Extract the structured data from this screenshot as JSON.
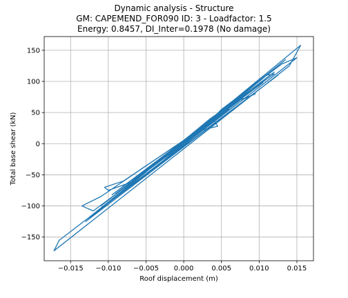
{
  "chart_data": {
    "type": "line",
    "title": [
      "Dynamic analysis - Structure",
      "GM: CAPEMEND_FOR090 ID: 3 -  Loadfactor: 1.5",
      "Energy: 0.8457, DI_Inter=0.1978 (No damage)"
    ],
    "xlabel": "Roof displacement (m)",
    "ylabel": "Total base shear (kN)",
    "xlim": [
      -0.0185,
      0.0172
    ],
    "ylim": [
      -188,
      172
    ],
    "xticks": [
      -0.015,
      -0.01,
      -0.005,
      0.0,
      0.005,
      0.01,
      0.015
    ],
    "xtick_labels": [
      "−0.015",
      "−0.010",
      "−0.005",
      "0.000",
      "0.005",
      "0.010",
      "0.015"
    ],
    "yticks": [
      -150,
      -100,
      -50,
      0,
      50,
      100,
      150
    ],
    "ytick_labels": [
      "−150",
      "−100",
      "−50",
      "0",
      "50",
      "100",
      "150"
    ],
    "grid": true,
    "line_color": "#1f77b4",
    "series": [
      {
        "values": [
          [
            0.0,
            0.0
          ],
          [
            0.002,
            20.0
          ],
          [
            -0.0015,
            -12.0
          ],
          [
            0.003,
            28.0
          ],
          [
            -0.0025,
            -20.0
          ],
          [
            0.0045,
            42.0
          ],
          [
            -0.004,
            -32.0
          ],
          [
            0.006,
            55.0
          ],
          [
            -0.005,
            -42.0
          ],
          [
            0.0075,
            70.0
          ],
          [
            -0.0065,
            -55.0
          ],
          [
            0.009,
            85.0
          ],
          [
            -0.008,
            -68.0
          ],
          [
            0.0105,
            98.0
          ],
          [
            -0.0095,
            -82.0
          ],
          [
            0.012,
            115.0
          ],
          [
            -0.011,
            -100.0
          ],
          [
            0.0135,
            135.0
          ],
          [
            -0.0125,
            -118.0
          ],
          [
            0.0125,
            110.0
          ],
          [
            -0.013,
            -125.0
          ],
          [
            0.0155,
            158.0
          ],
          [
            0.014,
            125.0
          ],
          [
            -0.0172,
            -172.0
          ],
          [
            -0.0165,
            -155.0
          ],
          [
            0.011,
            100.0
          ],
          [
            0.015,
            138.0
          ],
          [
            0.013,
            128.0
          ],
          [
            0.005,
            55.0
          ],
          [
            0.003,
            30.0
          ],
          [
            -0.011,
            -85.0
          ],
          [
            -0.0135,
            -100.0
          ],
          [
            -0.012,
            -108.0
          ],
          [
            0.008,
            72.0
          ],
          [
            0.0095,
            80.0
          ],
          [
            0.007,
            68.0
          ],
          [
            -0.007,
            -62.0
          ],
          [
            -0.01,
            -75.0
          ],
          [
            -0.0105,
            -70.0
          ],
          [
            -0.008,
            -60.0
          ],
          [
            0.004,
            38.0
          ],
          [
            0.0045,
            28.0
          ],
          [
            0.0025,
            22.0
          ],
          [
            -0.004,
            -42.0
          ],
          [
            -0.0055,
            -55.0
          ],
          [
            0.006,
            60.0
          ],
          [
            0.011,
            110.0
          ],
          [
            0.012,
            112.0
          ],
          [
            0.0035,
            40.0
          ],
          [
            -0.003,
            -25.0
          ],
          [
            -0.009,
            -80.0
          ],
          [
            0.001,
            10.0
          ],
          [
            0.0,
            0.0
          ]
        ]
      }
    ]
  }
}
